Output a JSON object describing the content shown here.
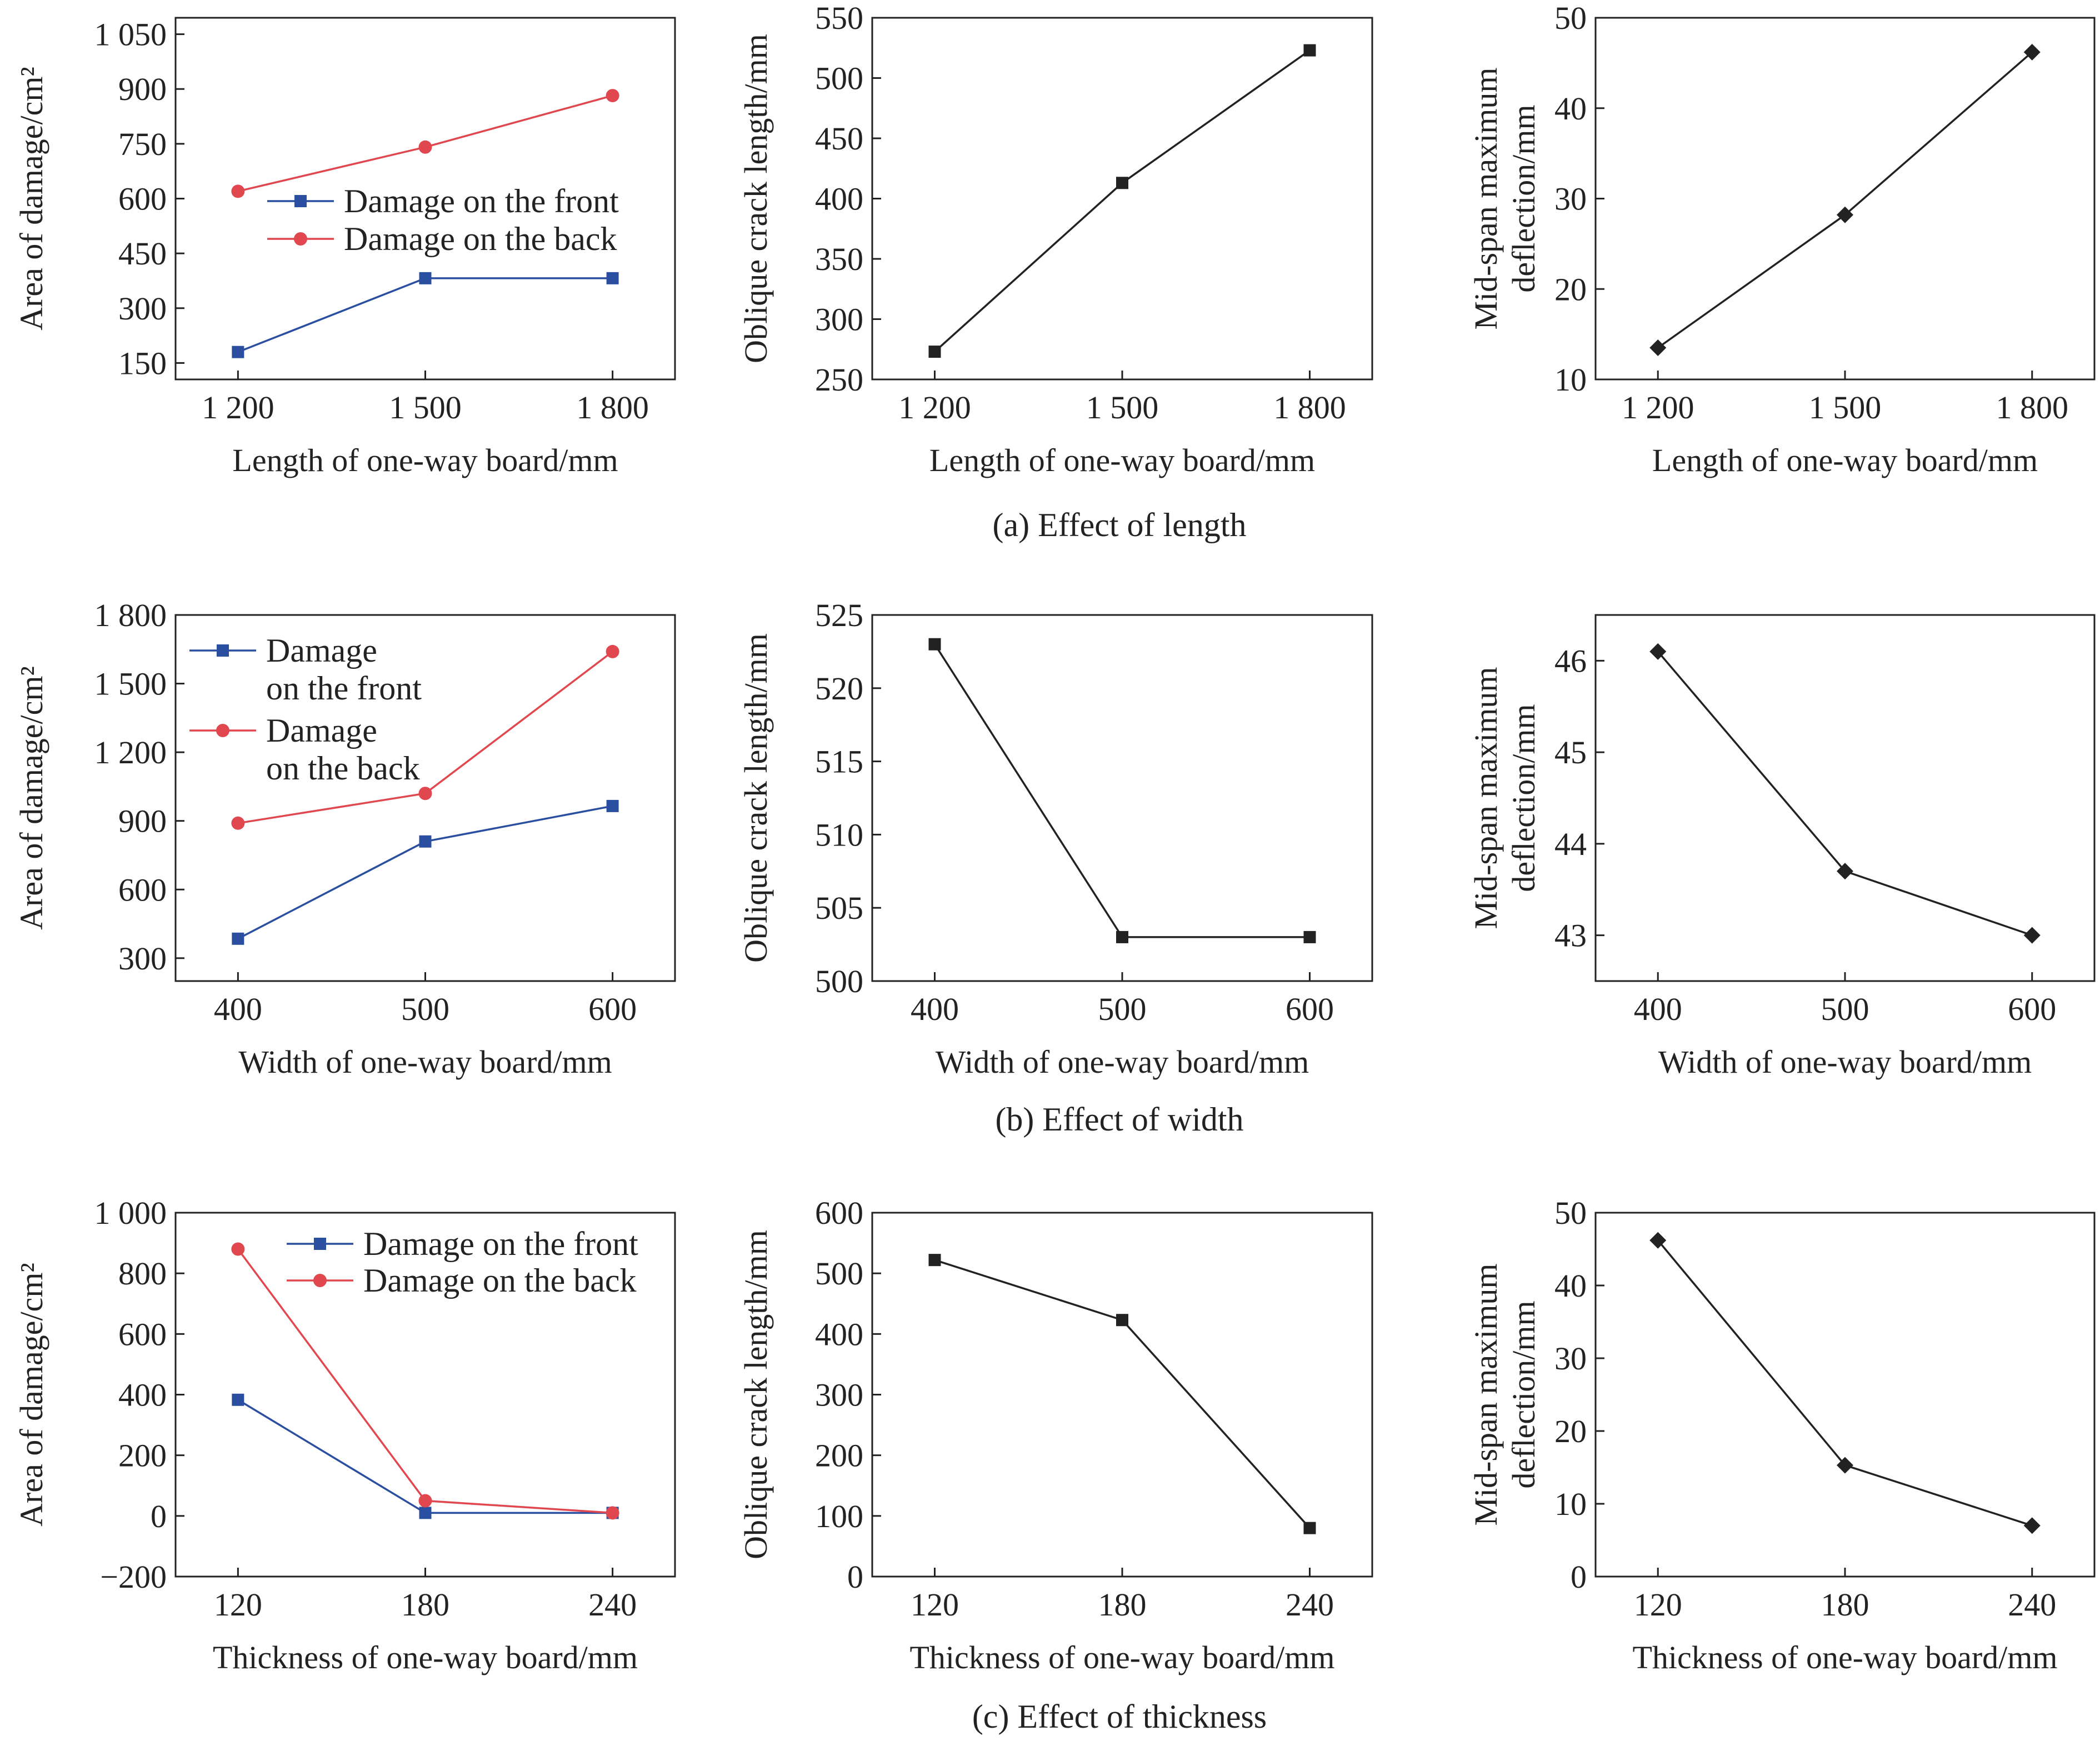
{
  "captions": [
    "(a) Effect of length",
    "(b) Effect of width",
    "(c) Effect of thickness"
  ],
  "colors": {
    "front": "#2b4fa0",
    "back": "#e0474f",
    "black": "#222222"
  },
  "chart_data": [
    {
      "type": "line",
      "row": 0,
      "xlabel": "Length of one-way board/mm",
      "ylabel": "Area of damage/cm²",
      "categories": [
        "1 200",
        "1 500",
        "1 800"
      ],
      "ylim": [
        105,
        1095
      ],
      "yticks": [
        150,
        300,
        450,
        600,
        750,
        900,
        1050
      ],
      "ytick_labels": [
        "150",
        "300",
        "450",
        "600",
        "750",
        "900",
        "1 050"
      ],
      "legend": "center-right",
      "series": [
        {
          "name": "Damage on the front",
          "color": "front",
          "marker": "square",
          "values": [
            180,
            382,
            382
          ]
        },
        {
          "name": "Damage on the back",
          "color": "back",
          "marker": "circle",
          "values": [
            620,
            741,
            882
          ]
        }
      ]
    },
    {
      "type": "line",
      "row": 0,
      "xlabel": "Length of one-way board/mm",
      "ylabel": "Oblique crack length/mm",
      "categories": [
        "1 200",
        "1 500",
        "1 800"
      ],
      "ylim": [
        250,
        550
      ],
      "yticks": [
        250,
        300,
        350,
        400,
        450,
        500,
        550
      ],
      "ytick_labels": [
        "250",
        "300",
        "350",
        "400",
        "450",
        "500",
        "550"
      ],
      "series": [
        {
          "name": "",
          "color": "black",
          "marker": "square",
          "values": [
            273,
            413,
            523
          ]
        }
      ]
    },
    {
      "type": "line",
      "row": 0,
      "xlabel": "Length of one-way board/mm",
      "ylabel": "Mid-span maximum deflection/mm",
      "ylabel_lines": [
        "Mid-span maximum",
        "deflection/mm"
      ],
      "categories": [
        "1 200",
        "1 500",
        "1 800"
      ],
      "ylim": [
        10,
        50
      ],
      "yticks": [
        10,
        20,
        30,
        40,
        50
      ],
      "ytick_labels": [
        "10",
        "20",
        "30",
        "40",
        "50"
      ],
      "series": [
        {
          "name": "",
          "color": "black",
          "marker": "diamond",
          "values": [
            13.5,
            28.2,
            46.2
          ]
        }
      ]
    },
    {
      "type": "line",
      "row": 1,
      "xlabel": "Width of one-way board/mm",
      "ylabel": "Area of damage/cm²",
      "categories": [
        "400",
        "500",
        "600"
      ],
      "ylim": [
        200,
        1800
      ],
      "yticks": [
        300,
        600,
        900,
        1200,
        1500,
        1800
      ],
      "ytick_labels": [
        "300",
        "600",
        "900",
        "1 200",
        "1 500",
        "1 800"
      ],
      "legend": "top-left",
      "series": [
        {
          "name": "Damage on the front",
          "legend_lines": [
            "Damage",
            "on the front"
          ],
          "color": "front",
          "marker": "square",
          "values": [
            385,
            810,
            965
          ]
        },
        {
          "name": "Damage on the back",
          "legend_lines": [
            "Damage",
            "on the back"
          ],
          "color": "back",
          "marker": "circle",
          "values": [
            890,
            1020,
            1640
          ]
        }
      ]
    },
    {
      "type": "line",
      "row": 1,
      "xlabel": "Width of one-way board/mm",
      "ylabel": "Oblique crack length/mm",
      "categories": [
        "400",
        "500",
        "600"
      ],
      "ylim": [
        500,
        525
      ],
      "yticks": [
        500,
        505,
        510,
        515,
        520,
        525
      ],
      "ytick_labels": [
        "500",
        "505",
        "510",
        "515",
        "520",
        "525"
      ],
      "series": [
        {
          "name": "",
          "color": "black",
          "marker": "square",
          "values": [
            523,
            503,
            503
          ]
        }
      ]
    },
    {
      "type": "line",
      "row": 1,
      "xlabel": "Width of one-way board/mm",
      "ylabel": "Mid-span maximum deflection/mm",
      "ylabel_lines": [
        "Mid-span maximum",
        "deflection/mm"
      ],
      "categories": [
        "400",
        "500",
        "600"
      ],
      "ylim": [
        42.5,
        46.5
      ],
      "yticks": [
        43,
        44,
        45,
        46
      ],
      "ytick_labels": [
        "43",
        "44",
        "45",
        "46"
      ],
      "series": [
        {
          "name": "",
          "color": "black",
          "marker": "diamond",
          "values": [
            46.1,
            43.7,
            43.0
          ]
        }
      ]
    },
    {
      "type": "line",
      "row": 2,
      "xlabel": "Thickness of one-way board/mm",
      "ylabel": "Area of damage/cm²",
      "categories": [
        "120",
        "180",
        "240"
      ],
      "ylim": [
        -200,
        1000
      ],
      "yticks": [
        -200,
        0,
        200,
        400,
        600,
        800,
        1000
      ],
      "ytick_labels": [
        "−200",
        "0",
        "200",
        "400",
        "600",
        "800",
        "1 000"
      ],
      "legend": "top-right",
      "series": [
        {
          "name": "Damage on the front",
          "color": "front",
          "marker": "square",
          "values": [
            383,
            10,
            10
          ]
        },
        {
          "name": "Damage on the back",
          "color": "back",
          "marker": "circle",
          "values": [
            880,
            50,
            10
          ]
        }
      ]
    },
    {
      "type": "line",
      "row": 2,
      "xlabel": "Thickness of one-way board/mm",
      "ylabel": "Oblique crack length/mm",
      "categories": [
        "120",
        "180",
        "240"
      ],
      "ylim": [
        0,
        600
      ],
      "yticks": [
        0,
        100,
        200,
        300,
        400,
        500,
        600
      ],
      "ytick_labels": [
        "0",
        "100",
        "200",
        "300",
        "400",
        "500",
        "600"
      ],
      "series": [
        {
          "name": "",
          "color": "black",
          "marker": "square",
          "values": [
            522,
            423,
            80
          ]
        }
      ]
    },
    {
      "type": "line",
      "row": 2,
      "xlabel": "Thickness of one-way board/mm",
      "ylabel": "Mid-span maximum deflection/mm",
      "ylabel_lines": [
        "Mid-span maximum",
        "deflection/mm"
      ],
      "categories": [
        "120",
        "180",
        "240"
      ],
      "ylim": [
        0,
        50
      ],
      "yticks": [
        0,
        10,
        20,
        30,
        40,
        50
      ],
      "ytick_labels": [
        "0",
        "10",
        "20",
        "30",
        "40",
        "50"
      ],
      "series": [
        {
          "name": "",
          "color": "black",
          "marker": "diamond",
          "values": [
            46.2,
            15.3,
            7.0
          ]
        }
      ]
    }
  ]
}
